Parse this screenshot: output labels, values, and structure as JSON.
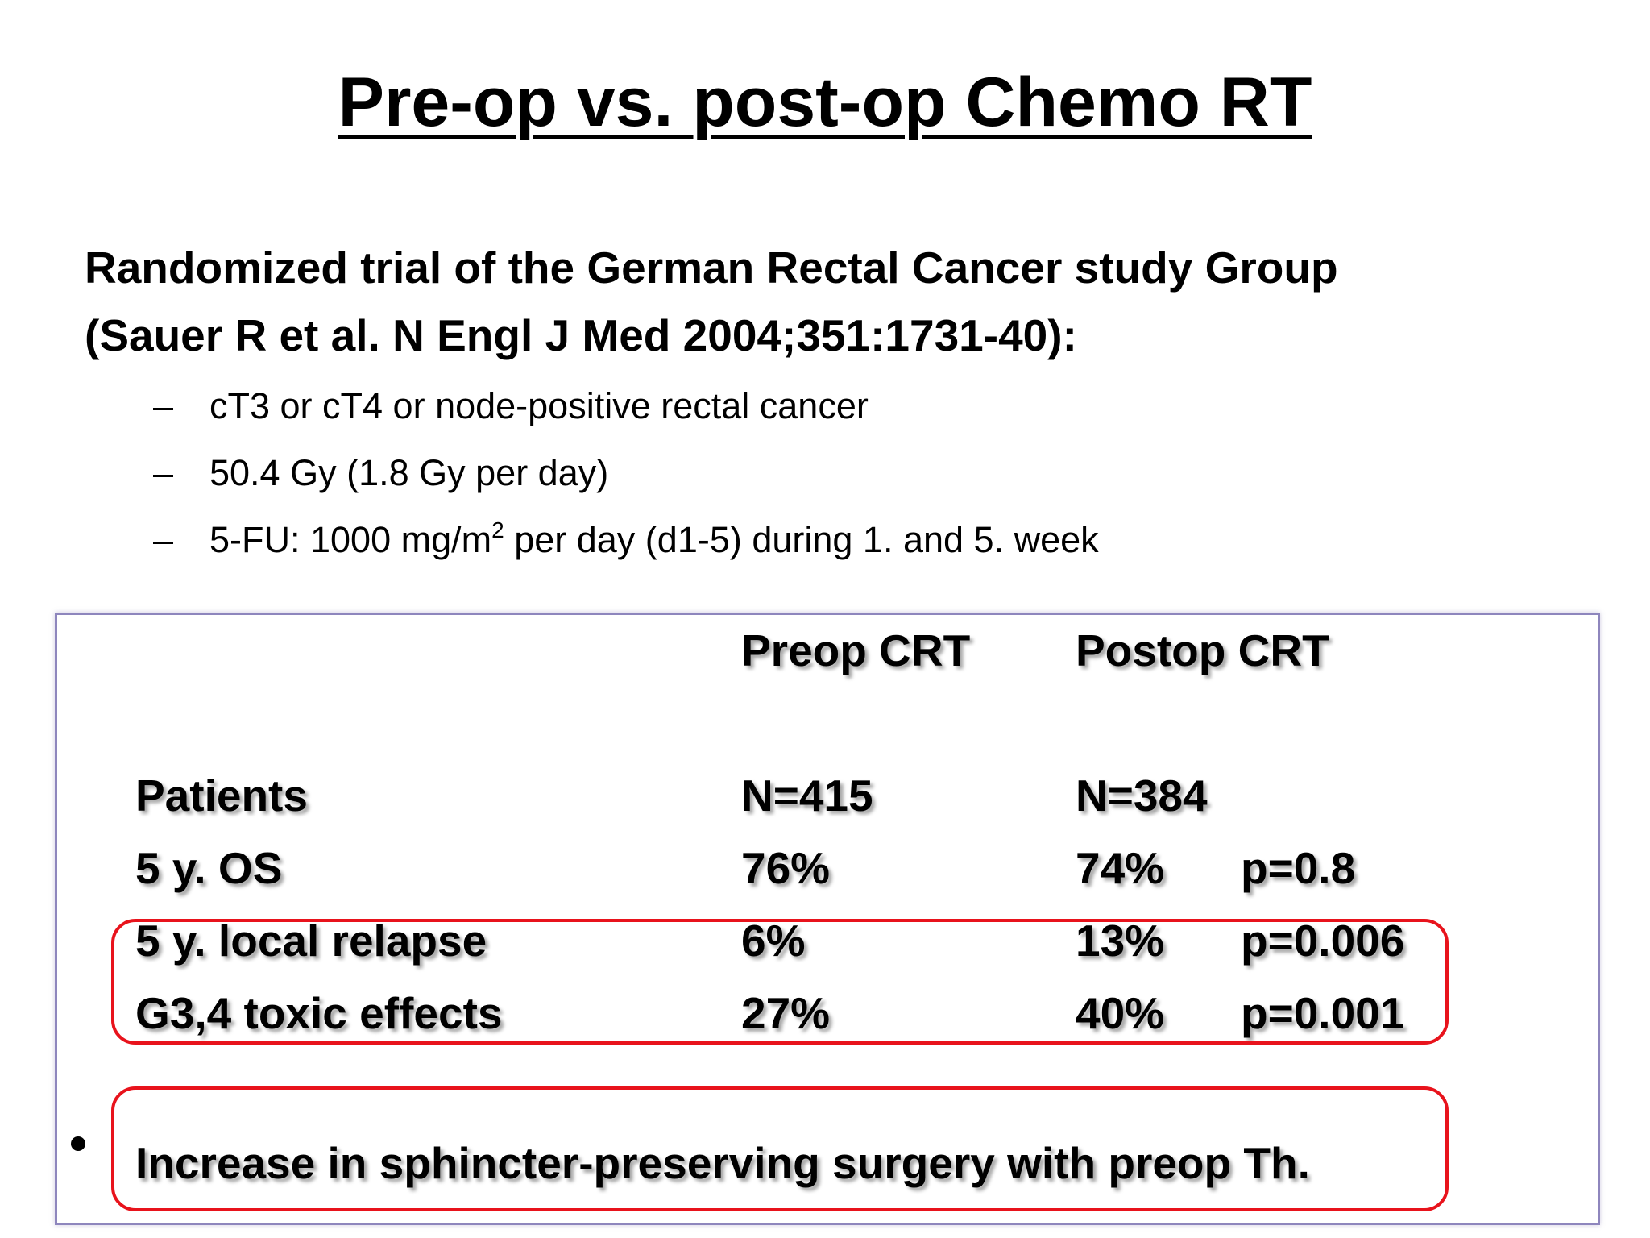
{
  "slide": {
    "title": "Pre-op vs. post-op Chemo RT",
    "subtitle_line1": "Randomized trial of the German Rectal Cancer study Group",
    "subtitle_line2": "(Sauer R et al. N Engl J Med 2004;351:1731-40):",
    "bullet_dash": "–",
    "bullets": [
      "cT3 or cT4 or node-positive rectal cancer",
      "50.4 Gy (1.8 Gy per day)"
    ],
    "bullet3_pre": "5-FU: 1000 mg/m",
    "bullet3_sup": "2",
    "bullet3_post": " per day (d1-5) during 1. and 5. week"
  },
  "table": {
    "headers": {
      "label": "",
      "preop": "Preop CRT",
      "postop": "Postop CRT",
      "p": ""
    },
    "rows": [
      {
        "label": "Patients",
        "preop": "N=415",
        "postop": "N=384",
        "p": ""
      },
      {
        "label": "5 y. OS",
        "preop": "76%",
        "postop": "74%",
        "p": "p=0.8"
      },
      {
        "label": "5 y. local relapse",
        "preop": "6%",
        "postop": "13%",
        "p": "p=0.006"
      },
      {
        "label": "G3,4 toxic effects",
        "preop": "27%",
        "postop": "40%",
        "p": "p=0.001"
      }
    ]
  },
  "conclusion": {
    "text": "Increase in sphincter-preserving surgery with preop Th."
  },
  "colors": {
    "highlight_border": "#e8131c",
    "frame_border": "#8e86bd",
    "text": "#000000",
    "background": "#ffffff"
  }
}
